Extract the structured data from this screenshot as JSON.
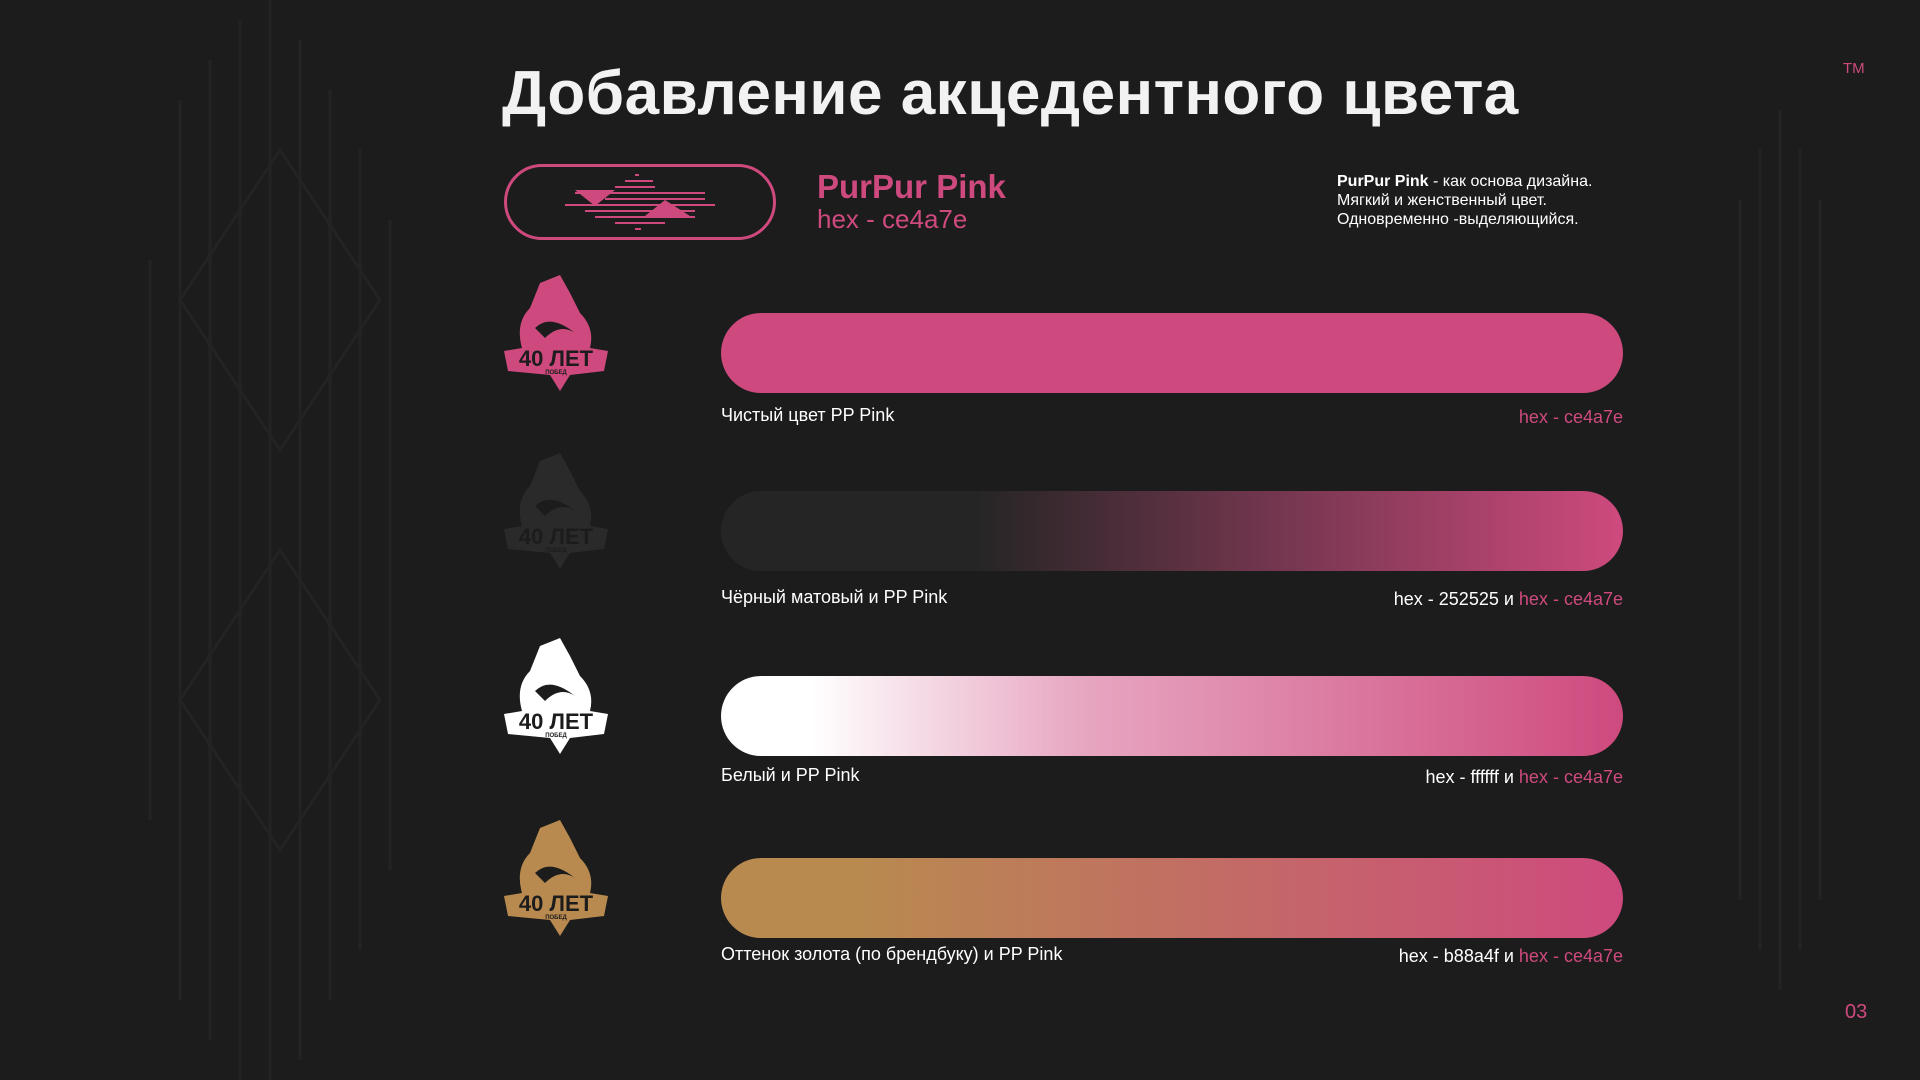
{
  "title": "Добавление акцедентного цвета",
  "trademark": "TM",
  "brand": {
    "name": "PurPur Pink",
    "hex": "hex - ce4a7e",
    "color": "#ce4a7e"
  },
  "description": {
    "bold": "PurPur Pink",
    "line1": " - как основа дизайна.",
    "line2": "Мягкий и женственный цвет.",
    "line3": "Одновременно -выделяющийся."
  },
  "logo_text": {
    "main": "40 ЛЕТ",
    "sub": "ПОБЕД"
  },
  "rows": [
    {
      "label": "Чистый цвет PP Pink",
      "hex_a": "",
      "joiner": "",
      "hex_b": "hex - ce4a7e",
      "logo_color": "#ce4a7e",
      "gradient": [
        "#ce4a7e",
        "#ce4a7e"
      ]
    },
    {
      "label": "Чёрный матовый и PP Pink",
      "hex_a": "hex - 252525",
      "joiner": " и ",
      "hex_b": "hex - ce4a7e",
      "logo_color": "#2a2a2a",
      "gradient": [
        "#252525",
        "#ce4a7e"
      ]
    },
    {
      "label": "Белый и PP Pink",
      "hex_a": "hex - ffffff",
      "joiner": " и ",
      "hex_b": "hex - ce4a7e",
      "logo_color": "#ffffff",
      "gradient": [
        "#ffffff",
        "#ce4a7e"
      ]
    },
    {
      "label": "Оттенок золота (по брендбуку) и PP Pink",
      "hex_a": "hex - b88a4f",
      "joiner": " и ",
      "hex_b": "hex - ce4a7e",
      "logo_color": "#b88a4f",
      "gradient": [
        "#b88a4f",
        "#ce4a7e"
      ]
    }
  ],
  "page_number": "03"
}
